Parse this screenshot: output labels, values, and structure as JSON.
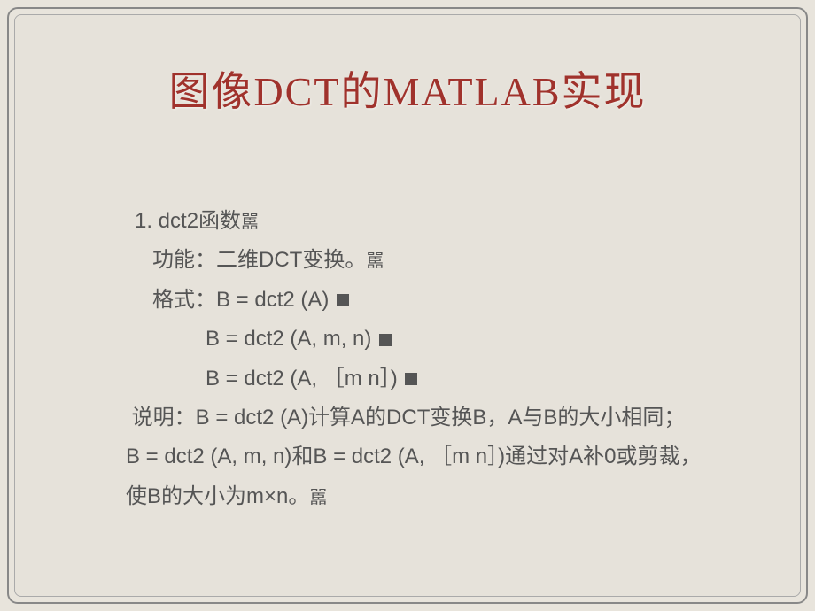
{
  "title": "图像DCT的MATLAB实现",
  "section": {
    "heading": "1. dct2函数",
    "heading_suffix": "嚚",
    "function_label": "功能：",
    "function_text": "二维DCT变换。",
    "function_suffix": "嚚",
    "format_label": "格式：",
    "format_line1": "B = dct2 (A)",
    "format_line2": "B = dct2 (A, m, n)",
    "format_line3": "B = dct2 (A, ［m n］)",
    "desc_label": "说明：",
    "desc_text1": "B = dct2 (A)计算A的DCT变换B，A与B的大小相同；",
    "desc_text2": "B = dct2 (A, m, n)和B = dct2 (A, ［m n］)通过对A补0或剪裁，使B的大小为m×n。",
    "desc_suffix": "嚚"
  },
  "colors": {
    "title_color": "#a0322c",
    "body_color": "#555555",
    "background": "#e6e2da"
  }
}
